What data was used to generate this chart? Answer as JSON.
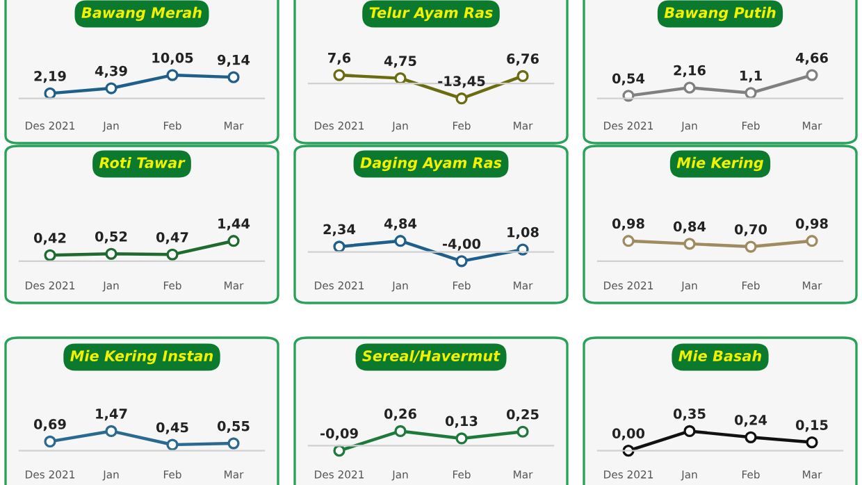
{
  "chart_data": [
    {
      "type": "line",
      "title": "Bawang Merah",
      "categories": [
        "Des 2021",
        "Jan",
        "Feb",
        "Mar"
      ],
      "marker": "circle",
      "tick_labels": "x",
      "series": [
        {
          "color": "#1f5f8b",
          "values": [
            2.19,
            4.39,
            10.05,
            9.14
          ],
          "value_labels": [
            "2,19",
            "4,39",
            "10,05",
            "9,14"
          ]
        }
      ]
    },
    {
      "type": "line",
      "title": "Telur Ayam Ras",
      "categories": [
        "Des 2021",
        "Jan",
        "Feb",
        "Mar"
      ],
      "marker": "circle",
      "tick_labels": "x",
      "series": [
        {
          "color": "#6b6b10",
          "values": [
            7.6,
            4.75,
            -13.45,
            6.76
          ],
          "value_labels": [
            "7,6",
            "4,75",
            "-13,45",
            "6,76"
          ]
        }
      ]
    },
    {
      "type": "line",
      "title": "Bawang Putih",
      "categories": [
        "Des 2021",
        "Jan",
        "Feb",
        "Mar"
      ],
      "marker": "circle",
      "tick_labels": "x",
      "series": [
        {
          "color": "#808080",
          "values": [
            0.54,
            2.16,
            1.1,
            4.66
          ],
          "value_labels": [
            "0,54",
            "2,16",
            "1,1",
            "4,66"
          ]
        }
      ]
    },
    {
      "type": "line",
      "title": "Roti Tawar",
      "categories": [
        "Des 2021",
        "Jan",
        "Feb",
        "Mar"
      ],
      "marker": "circle",
      "tick_labels": "x",
      "series": [
        {
          "color": "#1e6b2e",
          "values": [
            0.42,
            0.52,
            0.47,
            1.44
          ],
          "value_labels": [
            "0,42",
            "0,52",
            "0,47",
            "1,44"
          ]
        }
      ]
    },
    {
      "type": "line",
      "title": "Daging Ayam Ras",
      "categories": [
        "Des 2021",
        "Jan",
        "Feb",
        "Mar"
      ],
      "marker": "circle",
      "tick_labels": "x",
      "series": [
        {
          "color": "#1f5f8b",
          "values": [
            2.34,
            4.84,
            -4.0,
            1.08
          ],
          "value_labels": [
            "2,34",
            "4,84",
            "-4,00",
            "1,08"
          ]
        }
      ]
    },
    {
      "type": "line",
      "title": "Mie Kering",
      "categories": [
        "Des 2021",
        "Jan",
        "Feb",
        "Mar"
      ],
      "marker": "circle",
      "tick_labels": "x",
      "series": [
        {
          "color": "#a08a60",
          "values": [
            0.98,
            0.84,
            0.7,
            0.98
          ],
          "value_labels": [
            "0,98",
            "0,84",
            "0,70",
            "0,98"
          ]
        }
      ]
    },
    {
      "type": "line",
      "title": "Mie Kering Instan",
      "categories": [
        "Des 2021",
        "Jan",
        "Feb",
        "Mar"
      ],
      "marker": "circle",
      "tick_labels": "x",
      "series": [
        {
          "color": "#2a6a90",
          "values": [
            0.69,
            1.47,
            0.45,
            0.55
          ],
          "value_labels": [
            "0,69",
            "1,47",
            "0,45",
            "0,55"
          ]
        }
      ]
    },
    {
      "type": "line",
      "title": "Sereal/Havermut",
      "categories": [
        "Des 2021",
        "Jan",
        "Feb",
        "Mar"
      ],
      "marker": "circle",
      "tick_labels": "x",
      "series": [
        {
          "color": "#1e7a3a",
          "values": [
            -0.09,
            0.26,
            0.13,
            0.25
          ],
          "value_labels": [
            "-0,09",
            "0,26",
            "0,13",
            "0,25"
          ]
        }
      ]
    },
    {
      "type": "line",
      "title": "Mie Basah",
      "categories": [
        "Des 2021",
        "Jan",
        "Feb",
        "Mar"
      ],
      "marker": "circle",
      "tick_labels": "x",
      "series": [
        {
          "color": "#111111",
          "values": [
            0.0,
            0.35,
            0.24,
            0.15
          ],
          "value_labels": [
            "0,00",
            "0,35",
            "0,24",
            "0,15"
          ]
        }
      ]
    }
  ]
}
